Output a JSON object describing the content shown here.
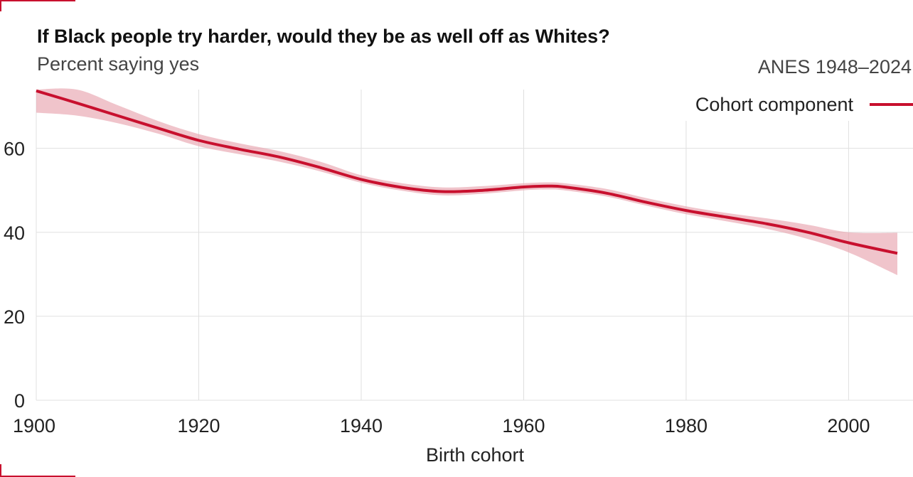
{
  "header": {
    "title": "If Black people try harder, would they be as well off as Whites?",
    "subtitle": "Percent saying yes",
    "source": "ANES 1948–2024"
  },
  "chart_data": {
    "type": "line",
    "xlabel": "Birth cohort",
    "ylabel": "",
    "xlim": [
      1900,
      2006
    ],
    "ylim": [
      0,
      74
    ],
    "x_ticks": [
      1900,
      1920,
      1940,
      1960,
      1980,
      2000
    ],
    "y_ticks": [
      0,
      20,
      40,
      60
    ],
    "grid": true,
    "legend_position": "top-right",
    "series": [
      {
        "name": "Cohort component",
        "color": "#c8102e",
        "band_color": "#e8a4af",
        "x": [
          1900,
          1905,
          1910,
          1915,
          1920,
          1925,
          1930,
          1935,
          1940,
          1945,
          1950,
          1955,
          1960,
          1963,
          1965,
          1970,
          1975,
          1980,
          1985,
          1990,
          1995,
          2000,
          2006
        ],
        "y": [
          73.7,
          70.8,
          67.8,
          64.8,
          61.9,
          59.8,
          57.9,
          55.4,
          52.6,
          50.7,
          49.7,
          50.0,
          50.8,
          51.0,
          50.8,
          49.4,
          47.2,
          45.2,
          43.6,
          42.0,
          40.0,
          37.5,
          35.0
        ],
        "lower": [
          68.5,
          67.8,
          66.0,
          63.5,
          60.5,
          58.6,
          56.8,
          54.5,
          51.8,
          49.9,
          48.8,
          49.2,
          50.0,
          50.2,
          50.0,
          48.6,
          46.4,
          44.3,
          42.6,
          40.8,
          38.4,
          35.2,
          29.8
        ],
        "upper": [
          75.0,
          75.0,
          70.3,
          66.5,
          63.4,
          61.2,
          59.3,
          56.8,
          53.6,
          51.7,
          50.7,
          51.0,
          51.7,
          51.9,
          51.7,
          50.4,
          48.2,
          46.2,
          44.6,
          43.3,
          41.8,
          40.0,
          39.9
        ]
      }
    ]
  }
}
